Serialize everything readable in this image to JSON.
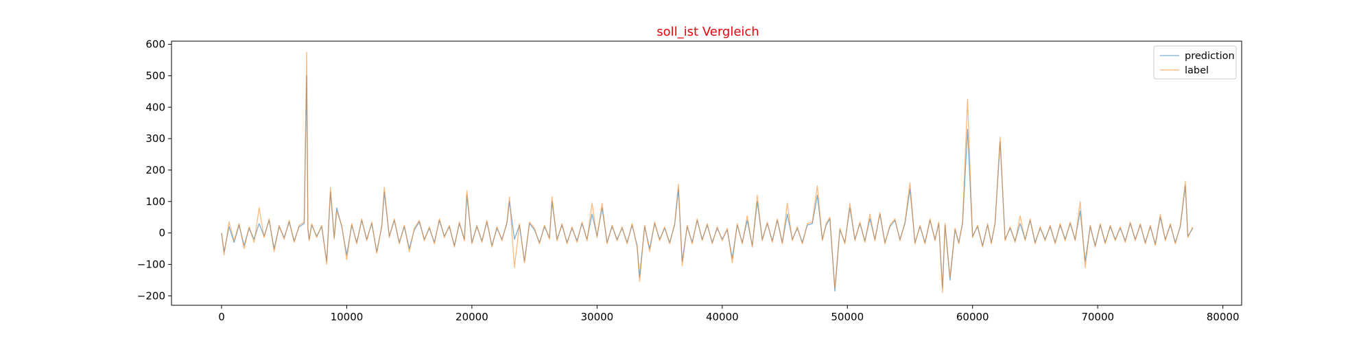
{
  "chart_data": {
    "type": "line",
    "title": "soll_ist Vergleich",
    "title_color": "#e8000b",
    "xlabel": "",
    "ylabel": "",
    "xlim": [
      -4000,
      81500
    ],
    "ylim": [
      -230,
      610
    ],
    "x_ticks": [
      0,
      10000,
      20000,
      30000,
      40000,
      50000,
      60000,
      70000,
      80000
    ],
    "x_tick_labels": [
      "0",
      "10000",
      "20000",
      "30000",
      "40000",
      "50000",
      "60000",
      "70000",
      "80000"
    ],
    "y_ticks": [
      -200,
      -100,
      0,
      100,
      200,
      300,
      400,
      500,
      600
    ],
    "y_tick_labels": [
      "−200",
      "−100",
      "0",
      "100",
      "200",
      "300",
      "400",
      "500",
      "600"
    ],
    "grid": false,
    "legend_position": "top-right",
    "series": [
      {
        "name": "prediction",
        "color": "#1f77b4",
        "x": [
          0,
          200,
          600,
          1000,
          1400,
          1800,
          2200,
          2600,
          3000,
          3400,
          3800,
          4200,
          4600,
          5000,
          5400,
          5800,
          6200,
          6600,
          6800,
          6900,
          7000,
          7200,
          7600,
          8000,
          8400,
          8700,
          9000,
          9200,
          9600,
          10000,
          10400,
          10800,
          11200,
          11600,
          12000,
          12400,
          12800,
          13000,
          13400,
          13800,
          14200,
          14600,
          15000,
          15400,
          15800,
          16200,
          16600,
          17000,
          17400,
          17800,
          18200,
          18600,
          19000,
          19400,
          19600,
          20000,
          20400,
          20800,
          21200,
          21600,
          22000,
          22400,
          22800,
          23000,
          23400,
          23800,
          24200,
          24600,
          25000,
          25400,
          25800,
          26200,
          26400,
          26800,
          27200,
          27600,
          28000,
          28400,
          28800,
          29200,
          29600,
          30000,
          30400,
          30800,
          31200,
          31600,
          32000,
          32400,
          32800,
          33200,
          33400,
          33800,
          34200,
          34600,
          35000,
          35400,
          35800,
          36200,
          36500,
          36800,
          37200,
          37600,
          38000,
          38400,
          38800,
          39200,
          39600,
          40000,
          40400,
          40800,
          41200,
          41600,
          42000,
          42400,
          42800,
          43200,
          43600,
          44000,
          44400,
          44800,
          45200,
          45600,
          46000,
          46400,
          46800,
          47200,
          47600,
          48000,
          48300,
          48600,
          49000,
          49400,
          49800,
          50200,
          50600,
          51000,
          51400,
          51800,
          52200,
          52600,
          53000,
          53400,
          53800,
          54200,
          54600,
          55000,
          55400,
          55800,
          56200,
          56600,
          57000,
          57300,
          57600,
          57800,
          58200,
          58600,
          58900,
          59200,
          59600,
          60000,
          60400,
          60800,
          61200,
          61500,
          61800,
          62200,
          62600,
          63000,
          63400,
          63800,
          64200,
          64600,
          65000,
          65400,
          65800,
          66200,
          66600,
          67000,
          67400,
          67800,
          68200,
          68600,
          69000,
          69400,
          69800,
          70200,
          70600,
          71000,
          71400,
          71800,
          72200,
          72600,
          73000,
          73400,
          73800,
          74200,
          74600,
          75000,
          75400,
          75800,
          76200,
          76600,
          77000,
          77200,
          77600
        ],
        "y": [
          0,
          -60,
          20,
          -30,
          25,
          -40,
          15,
          -20,
          30,
          -10,
          40,
          -50,
          20,
          -15,
          35,
          -25,
          20,
          30,
          500,
          10,
          -20,
          25,
          -10,
          20,
          -90,
          130,
          -15,
          80,
          20,
          -70,
          25,
          -30,
          40,
          -20,
          30,
          -60,
          20,
          130,
          -10,
          40,
          -30,
          20,
          -50,
          10,
          35,
          -20,
          15,
          -30,
          40,
          -10,
          20,
          -40,
          30,
          -20,
          120,
          -30,
          20,
          -25,
          35,
          -40,
          15,
          -20,
          30,
          100,
          -20,
          25,
          -90,
          30,
          10,
          -30,
          20,
          -15,
          100,
          -20,
          25,
          -30,
          15,
          -25,
          30,
          -20,
          60,
          -10,
          80,
          -30,
          20,
          -20,
          15,
          -30,
          25,
          -40,
          -140,
          20,
          -50,
          30,
          -20,
          15,
          -30,
          25,
          140,
          -90,
          20,
          -30,
          40,
          -20,
          25,
          -30,
          15,
          -20,
          10,
          -80,
          25,
          -30,
          40,
          -40,
          100,
          -20,
          30,
          -25,
          40,
          -30,
          60,
          -20,
          15,
          -30,
          25,
          30,
          120,
          -20,
          25,
          45,
          -185,
          10,
          -30,
          80,
          -20,
          30,
          -25,
          45,
          -20,
          60,
          -30,
          20,
          40,
          -20,
          30,
          140,
          -30,
          20,
          -30,
          40,
          -20,
          30,
          -175,
          25,
          -150,
          10,
          -30,
          30,
          330,
          -10,
          20,
          -40,
          25,
          -30,
          30,
          290,
          -20,
          15,
          -25,
          30,
          -20,
          40,
          -30,
          15,
          -20,
          20,
          -30,
          25,
          -20,
          30,
          -20,
          70,
          -90,
          20,
          -40,
          25,
          -30,
          20,
          -20,
          15,
          -25,
          30,
          -20,
          25,
          -30,
          20,
          -35,
          50,
          -20,
          25,
          -30,
          20,
          150,
          -10,
          15
        ]
      },
      {
        "name": "label",
        "color": "#ff7f0e",
        "x": [
          0,
          200,
          600,
          1000,
          1400,
          1800,
          2200,
          2600,
          3000,
          3400,
          3800,
          4200,
          4600,
          5000,
          5400,
          5800,
          6200,
          6600,
          6800,
          6900,
          7000,
          7200,
          7600,
          8000,
          8400,
          8700,
          9000,
          9200,
          9600,
          10000,
          10400,
          10800,
          11200,
          11600,
          12000,
          12400,
          12800,
          13000,
          13400,
          13800,
          14200,
          14600,
          15000,
          15400,
          15800,
          16200,
          16600,
          17000,
          17400,
          17800,
          18200,
          18600,
          19000,
          19400,
          19600,
          20000,
          20400,
          20800,
          21200,
          21600,
          22000,
          22400,
          22800,
          23000,
          23400,
          23800,
          24200,
          24600,
          25000,
          25400,
          25800,
          26200,
          26400,
          26800,
          27200,
          27600,
          28000,
          28400,
          28800,
          29200,
          29600,
          30000,
          30400,
          30800,
          31200,
          31600,
          32000,
          32400,
          32800,
          33200,
          33400,
          33800,
          34200,
          34600,
          35000,
          35400,
          35800,
          36200,
          36500,
          36800,
          37200,
          37600,
          38000,
          38400,
          38800,
          39200,
          39600,
          40000,
          40400,
          40800,
          41200,
          41600,
          42000,
          42400,
          42800,
          43200,
          43600,
          44000,
          44400,
          44800,
          45200,
          45600,
          46000,
          46400,
          46800,
          47200,
          47600,
          48000,
          48300,
          48600,
          49000,
          49400,
          49800,
          50200,
          50600,
          51000,
          51400,
          51800,
          52200,
          52600,
          53000,
          53400,
          53800,
          54200,
          54600,
          55000,
          55400,
          55800,
          56200,
          56600,
          57000,
          57300,
          57600,
          57800,
          58200,
          58600,
          58900,
          59200,
          59600,
          60000,
          60400,
          60800,
          61200,
          61500,
          61800,
          62200,
          62600,
          63000,
          63400,
          63800,
          64200,
          64600,
          65000,
          65400,
          65800,
          66200,
          66600,
          67000,
          67400,
          67800,
          68200,
          68600,
          69000,
          69400,
          69800,
          70200,
          70600,
          71000,
          71400,
          71800,
          72200,
          72600,
          73000,
          73400,
          73800,
          74200,
          74600,
          75000,
          75400,
          75800,
          76200,
          76600,
          77000,
          77200,
          77600
        ],
        "y": [
          0,
          -70,
          35,
          -25,
          30,
          -50,
          20,
          -30,
          80,
          -15,
          45,
          -60,
          25,
          -20,
          40,
          -30,
          25,
          35,
          575,
          15,
          -25,
          30,
          -15,
          25,
          -100,
          145,
          -20,
          70,
          25,
          -85,
          30,
          -35,
          45,
          -25,
          35,
          -65,
          25,
          145,
          -15,
          45,
          -35,
          25,
          -60,
          15,
          40,
          -25,
          20,
          -35,
          45,
          -15,
          25,
          -45,
          35,
          -25,
          135,
          -35,
          25,
          -30,
          40,
          -45,
          20,
          -25,
          35,
          115,
          -110,
          30,
          -95,
          35,
          15,
          -35,
          25,
          -20,
          115,
          -25,
          30,
          -35,
          20,
          -30,
          35,
          -25,
          95,
          -15,
          95,
          -35,
          25,
          -25,
          20,
          -35,
          30,
          -45,
          -155,
          25,
          -60,
          35,
          -25,
          20,
          -35,
          30,
          155,
          -105,
          25,
          -35,
          45,
          -25,
          30,
          -35,
          20,
          -25,
          15,
          -95,
          30,
          -35,
          55,
          -45,
          120,
          -25,
          35,
          -30,
          45,
          -35,
          95,
          -25,
          20,
          -35,
          30,
          35,
          150,
          -25,
          30,
          50,
          -175,
          15,
          -35,
          95,
          -25,
          35,
          -30,
          60,
          -25,
          65,
          -35,
          25,
          45,
          -25,
          35,
          160,
          -35,
          25,
          -35,
          45,
          -25,
          35,
          -190,
          30,
          -140,
          15,
          -35,
          35,
          425,
          -15,
          25,
          -45,
          30,
          -35,
          35,
          305,
          -25,
          20,
          -30,
          55,
          -25,
          45,
          -35,
          20,
          -25,
          25,
          -35,
          30,
          -25,
          35,
          -25,
          100,
          -110,
          25,
          -45,
          30,
          -35,
          25,
          -25,
          20,
          -30,
          35,
          -25,
          30,
          -35,
          25,
          -40,
          60,
          -25,
          30,
          -35,
          25,
          165,
          -15,
          20
        ]
      }
    ]
  }
}
